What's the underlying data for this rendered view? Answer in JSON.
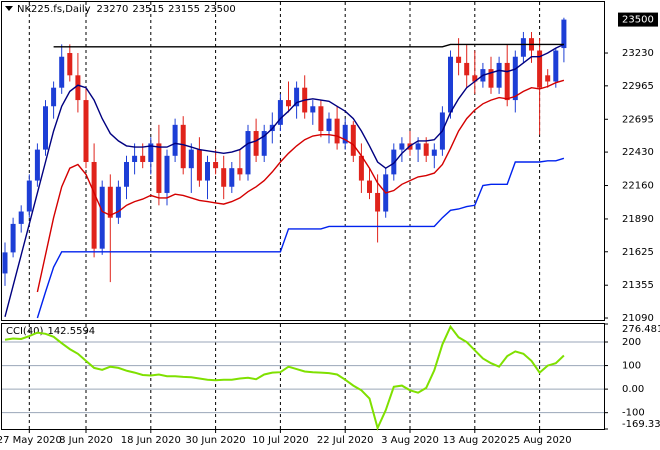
{
  "chart_data": {
    "type": "candlestick",
    "title": "NK225.fs,Daily",
    "categories": [
      null,
      null,
      null,
      "27 May 2020",
      null,
      null,
      null,
      null,
      null,
      null,
      "8 Jun 2020",
      null,
      null,
      null,
      null,
      null,
      null,
      null,
      "18 Jun 2020",
      null,
      null,
      null,
      null,
      null,
      null,
      null,
      "30 Jun 2020",
      null,
      null,
      null,
      null,
      null,
      null,
      null,
      "10 Jul 2020",
      null,
      null,
      null,
      null,
      null,
      null,
      null,
      "22 Jul 2020",
      null,
      null,
      null,
      null,
      null,
      null,
      null,
      "3 Aug 2020",
      null,
      null,
      null,
      null,
      null,
      null,
      null,
      "13 Aug 2020",
      null,
      null,
      null,
      null,
      null,
      null,
      null,
      "25 Aug 2020",
      null,
      null,
      null
    ],
    "candles": [
      [
        21450,
        21700,
        21350,
        21620
      ],
      [
        21620,
        21900,
        21580,
        21850
      ],
      [
        21850,
        22000,
        21780,
        21950
      ],
      [
        21950,
        22250,
        21900,
        22200
      ],
      [
        22200,
        22500,
        22150,
        22450
      ],
      [
        22450,
        22850,
        22400,
        22800
      ],
      [
        22800,
        23000,
        22700,
        22950
      ],
      [
        22950,
        23300,
        22900,
        23200
      ],
      [
        23230,
        23300,
        23000,
        23050
      ],
      [
        23050,
        23230,
        22750,
        22850
      ],
      [
        22850,
        22950,
        22300,
        22350
      ],
      [
        22350,
        22500,
        21580,
        21650
      ],
      [
        21650,
        22200,
        21600,
        22150
      ],
      [
        22150,
        22250,
        21380,
        21900
      ],
      [
        21900,
        22200,
        21850,
        22150
      ],
      [
        22150,
        22400,
        22050,
        22350
      ],
      [
        22350,
        22500,
        22250,
        22400
      ],
      [
        22400,
        22500,
        22300,
        22350
      ],
      [
        22350,
        22550,
        22250,
        22500
      ],
      [
        22500,
        22650,
        22000,
        22100
      ],
      [
        22100,
        22450,
        22000,
        22400
      ],
      [
        22400,
        22700,
        22350,
        22650
      ],
      [
        22650,
        22720,
        22250,
        22300
      ],
      [
        22300,
        22500,
        22100,
        22450
      ],
      [
        22450,
        22550,
        22150,
        22200
      ],
      [
        22200,
        22400,
        22050,
        22350
      ],
      [
        22350,
        22450,
        22250,
        22300
      ],
      [
        22300,
        22400,
        22050,
        22150
      ],
      [
        22150,
        22350,
        22100,
        22300
      ],
      [
        22300,
        22450,
        22200,
        22250
      ],
      [
        22250,
        22650,
        22200,
        22600
      ],
      [
        22600,
        22700,
        22350,
        22400
      ],
      [
        22400,
        22650,
        22350,
        22600
      ],
      [
        22600,
        22750,
        22500,
        22650
      ],
      [
        22650,
        22900,
        22600,
        22850
      ],
      [
        22850,
        23000,
        22750,
        22800
      ],
      [
        22800,
        23000,
        22700,
        22950
      ],
      [
        22950,
        23050,
        22700,
        22750
      ],
      [
        22750,
        22850,
        22650,
        22800
      ],
      [
        22800,
        22850,
        22550,
        22600
      ],
      [
        22600,
        22750,
        22500,
        22700
      ],
      [
        22700,
        22800,
        22450,
        22500
      ],
      [
        22500,
        22700,
        22450,
        22650
      ],
      [
        22650,
        22680,
        22350,
        22400
      ],
      [
        22400,
        22500,
        22100,
        22200
      ],
      [
        22200,
        22300,
        22050,
        22100
      ],
      [
        22100,
        22250,
        21700,
        21950
      ],
      [
        21950,
        22300,
        21900,
        22250
      ],
      [
        22250,
        22500,
        22200,
        22450
      ],
      [
        22450,
        22550,
        22350,
        22500
      ],
      [
        22500,
        22600,
        22400,
        22450
      ],
      [
        22450,
        22550,
        22350,
        22500
      ],
      [
        22500,
        22550,
        22350,
        22400
      ],
      [
        22400,
        22500,
        22300,
        22450
      ],
      [
        22450,
        22800,
        22400,
        22750
      ],
      [
        22750,
        23250,
        22700,
        23200
      ],
      [
        23200,
        23350,
        23050,
        23150
      ],
      [
        23150,
        23300,
        22950,
        23050
      ],
      [
        23050,
        23250,
        22900,
        23000
      ],
      [
        23000,
        23150,
        22950,
        23100
      ],
      [
        23100,
        23200,
        22900,
        22950
      ],
      [
        22950,
        23200,
        22900,
        23150
      ],
      [
        23150,
        23300,
        22800,
        22850
      ],
      [
        22850,
        23250,
        22750,
        23200
      ],
      [
        23200,
        23400,
        23150,
        23350
      ],
      [
        23350,
        23400,
        23150,
        23250
      ],
      [
        23250,
        23350,
        22570,
        22950
      ],
      [
        23050,
        23100,
        22950,
        23000
      ],
      [
        23000,
        23270,
        22950,
        23250
      ],
      [
        23270,
        23515,
        23155,
        23500
      ]
    ],
    "up_color": "#1d3ed6",
    "down_color": "#e0231b",
    "ylim": [
      21074,
      23642
    ],
    "yticks": [
      21090,
      21355,
      21625,
      21890,
      22160,
      22430,
      22695,
      22965,
      23230
    ],
    "grid": true,
    "lines": [
      {
        "color": "#000080",
        "values": [
          21100,
          21350,
          21600,
          21850,
          22100,
          22350,
          22600,
          22800,
          22920,
          22970,
          22950,
          22850,
          22700,
          22580,
          22520,
          22480,
          22470,
          22470,
          22480,
          22470,
          22470,
          22500,
          22490,
          22470,
          22450,
          22440,
          22430,
          22420,
          22430,
          22450,
          22500,
          22520,
          22560,
          22620,
          22700,
          22760,
          22830,
          22850,
          22860,
          22850,
          22840,
          22800,
          22760,
          22700,
          22600,
          22480,
          22350,
          22300,
          22340,
          22420,
          22480,
          22520,
          22520,
          22530,
          22600,
          22750,
          22860,
          22950,
          23000,
          23050,
          23070,
          23090,
          23080,
          23100,
          23150,
          23200,
          23200,
          23230,
          23270,
          23300
        ]
      },
      {
        "color": "#d40000",
        "values": [
          null,
          null,
          null,
          null,
          21300,
          21600,
          21900,
          22150,
          22300,
          22330,
          22250,
          22100,
          21950,
          21920,
          21950,
          22000,
          22030,
          22050,
          22080,
          22060,
          22060,
          22090,
          22080,
          22060,
          22040,
          22030,
          22020,
          22010,
          22030,
          22060,
          22110,
          22150,
          22200,
          22270,
          22350,
          22420,
          22480,
          22530,
          22560,
          22570,
          22570,
          22560,
          22530,
          22490,
          22400,
          22300,
          22180,
          22100,
          22120,
          22170,
          22200,
          22230,
          22240,
          22260,
          22330,
          22460,
          22600,
          22700,
          22770,
          22820,
          22850,
          22870,
          22860,
          22880,
          22920,
          22950,
          22940,
          22960,
          22990,
          23010
        ]
      },
      {
        "color": "#0022ee",
        "values": [
          null,
          null,
          null,
          null,
          21090,
          21300,
          21500,
          21625,
          21625,
          21625,
          21625,
          21625,
          21625,
          21625,
          21625,
          21625,
          21625,
          21625,
          21625,
          21625,
          21625,
          21625,
          21625,
          21625,
          21625,
          21625,
          21625,
          21625,
          21625,
          21625,
          21625,
          21625,
          21625,
          21625,
          21625,
          21810,
          21810,
          21810,
          21810,
          21810,
          21830,
          21830,
          21830,
          21830,
          21830,
          21830,
          21830,
          21830,
          21830,
          21830,
          21830,
          21830,
          21830,
          21830,
          21900,
          21960,
          21970,
          21990,
          22000,
          22160,
          22170,
          22170,
          22170,
          22350,
          22350,
          22350,
          22350,
          22360,
          22360,
          22380
        ]
      },
      {
        "color": "#000000",
        "values": [
          null,
          null,
          null,
          null,
          null,
          null,
          23280,
          23280,
          23280,
          23280,
          23280,
          23280,
          23280,
          23280,
          23280,
          23280,
          23280,
          23280,
          23280,
          23280,
          23280,
          23280,
          23280,
          23280,
          23280,
          23280,
          23280,
          23280,
          23280,
          23280,
          23280,
          23280,
          23280,
          23280,
          23280,
          23280,
          23280,
          23280,
          23280,
          23280,
          23280,
          23280,
          23280,
          23280,
          23280,
          23280,
          23280,
          23280,
          23280,
          23280,
          23280,
          23280,
          23280,
          23280,
          23280,
          23300,
          23300,
          23300,
          23300,
          23300,
          23300,
          23300,
          23300,
          23300,
          23300,
          23300,
          23300,
          23300,
          23300,
          23300
        ]
      }
    ],
    "indicator": {
      "type": "line",
      "title": "CCI(40)",
      "color": "#7fe000",
      "values": [
        210,
        215,
        213,
        225,
        240,
        235,
        222,
        195,
        170,
        150,
        120,
        90,
        82,
        95,
        90,
        78,
        70,
        60,
        58,
        62,
        55,
        55,
        52,
        50,
        45,
        40,
        38,
        40,
        40,
        45,
        48,
        42,
        62,
        70,
        72,
        95,
        85,
        75,
        72,
        70,
        68,
        62,
        40,
        15,
        -5,
        -40,
        -165,
        -90,
        10,
        15,
        -5,
        -15,
        5,
        80,
        190,
        265,
        220,
        200,
        165,
        130,
        110,
        95,
        140,
        160,
        150,
        120,
        70,
        100,
        110,
        142.5594
      ],
      "ylim": [
        -169.336,
        276.4817
      ],
      "yticks": [
        -169.336,
        -100,
        {
          "value": 0,
          "label": "0.00"
        },
        100,
        200,
        276.4817
      ]
    }
  }
}
